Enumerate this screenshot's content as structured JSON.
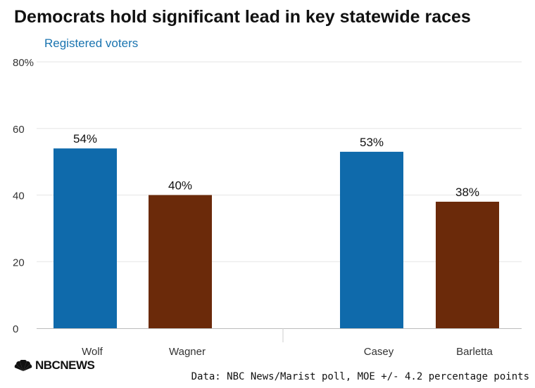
{
  "header": {
    "title": "Democrats hold significant lead in key statewide races",
    "subtitle": "Registered voters"
  },
  "footer": {
    "logo_text": "NBCNEWS",
    "source": "Data: NBC News/Marist poll, MOE +/- 4.2 percentage points"
  },
  "colors": {
    "democrat": "#0f6aab",
    "republican": "#6b2a0a"
  },
  "icons": {
    "logo": "peacock-icon"
  },
  "chart_data": {
    "type": "bar",
    "title": "Democrats hold significant lead in key statewide races",
    "subtitle": "Registered voters",
    "categories": [
      "Wolf",
      "Wagner",
      "Casey",
      "Barletta"
    ],
    "values": [
      54,
      40,
      53,
      38
    ],
    "value_labels": [
      "54%",
      "40%",
      "53%",
      "38%"
    ],
    "groups": [
      [
        "Wolf",
        "Wagner"
      ],
      [
        "Casey",
        "Barletta"
      ]
    ],
    "bar_colors": [
      "#0f6aab",
      "#6b2a0a",
      "#0f6aab",
      "#6b2a0a"
    ],
    "ylim": [
      0,
      80
    ],
    "yticks": [
      0,
      20,
      40,
      60,
      80
    ],
    "ytick_labels": [
      "0",
      "20",
      "40",
      "60",
      "80%"
    ],
    "xlabel": "",
    "ylabel": "",
    "grid": true
  }
}
